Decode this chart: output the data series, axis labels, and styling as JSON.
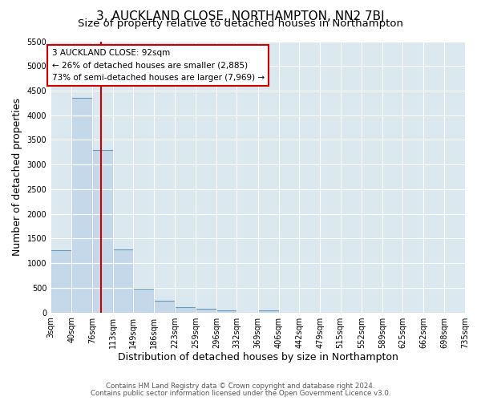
{
  "title": "3, AUCKLAND CLOSE, NORTHAMPTON, NN2 7BJ",
  "subtitle": "Size of property relative to detached houses in Northampton",
  "xlabel": "Distribution of detached houses by size in Northampton",
  "ylabel": "Number of detached properties",
  "footer_line1": "Contains HM Land Registry data © Crown copyright and database right 2024.",
  "footer_line2": "Contains public sector information licensed under the Open Government Licence v3.0.",
  "bin_edges": [
    3,
    40,
    76,
    113,
    149,
    186,
    223,
    259,
    296,
    332,
    369,
    406,
    442,
    479,
    515,
    552,
    589,
    625,
    662,
    698,
    735
  ],
  "bin_heights": [
    1270,
    4350,
    3300,
    1280,
    480,
    240,
    100,
    80,
    50,
    0,
    50,
    0,
    0,
    0,
    0,
    0,
    0,
    0,
    0,
    0
  ],
  "bar_facecolor": "#c5d8ea",
  "bar_edgecolor": "#6699bb",
  "bar_linewidth": 0.8,
  "red_line_x": 92,
  "red_line_color": "#cc0000",
  "annotation_title": "3 AUCKLAND CLOSE: 92sqm",
  "annotation_line1": "← 26% of detached houses are smaller (2,885)",
  "annotation_line2": "73% of semi-detached houses are larger (7,969) →",
  "annotation_box_edgecolor": "#cc0000",
  "annotation_box_facecolor": "#ffffff",
  "ylim": [
    0,
    5500
  ],
  "yticks": [
    0,
    500,
    1000,
    1500,
    2000,
    2500,
    3000,
    3500,
    4000,
    4500,
    5000,
    5500
  ],
  "fig_bg_color": "#ffffff",
  "plot_bg_color": "#dce8f0",
  "grid_color": "#ffffff",
  "title_fontsize": 11,
  "subtitle_fontsize": 9.5,
  "axis_label_fontsize": 9,
  "tick_fontsize": 7
}
